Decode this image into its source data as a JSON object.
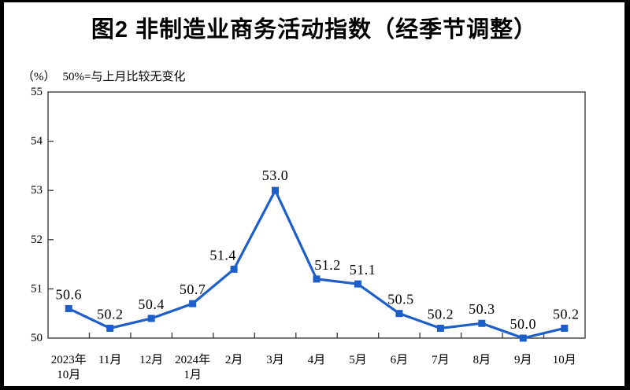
{
  "chart_data": {
    "type": "line",
    "title": "图2 非制造业商务活动指数（经季节调整）",
    "unit_label": "（%）",
    "note": "50%=与上月比较无变化",
    "categories": [
      [
        "2023年",
        "10月"
      ],
      [
        "11月"
      ],
      [
        "12月"
      ],
      [
        "2024年",
        "1月"
      ],
      [
        "2月"
      ],
      [
        "3月"
      ],
      [
        "4月"
      ],
      [
        "5月"
      ],
      [
        "6月"
      ],
      [
        "7月"
      ],
      [
        "8月"
      ],
      [
        "9月"
      ],
      [
        "10月"
      ]
    ],
    "values": [
      50.6,
      50.2,
      50.4,
      50.7,
      51.4,
      53.0,
      51.2,
      51.1,
      50.5,
      50.2,
      50.3,
      50.0,
      50.2
    ],
    "data_labels": [
      "50.6",
      "50.2",
      "50.4",
      "50.7",
      "51.4",
      "53.0",
      "51.2",
      "51.1",
      "50.5",
      "50.2",
      "50.3",
      "50.0",
      "50.2"
    ],
    "xlabel": "",
    "ylabel": "%",
    "ylim": [
      50,
      55
    ],
    "yticks": [
      50,
      51,
      52,
      53,
      54,
      55
    ],
    "grid": false,
    "legend": "none",
    "marker": "square",
    "line_color": "#1e5ec8",
    "axis_color": "#404040",
    "text_color": "#000000"
  }
}
